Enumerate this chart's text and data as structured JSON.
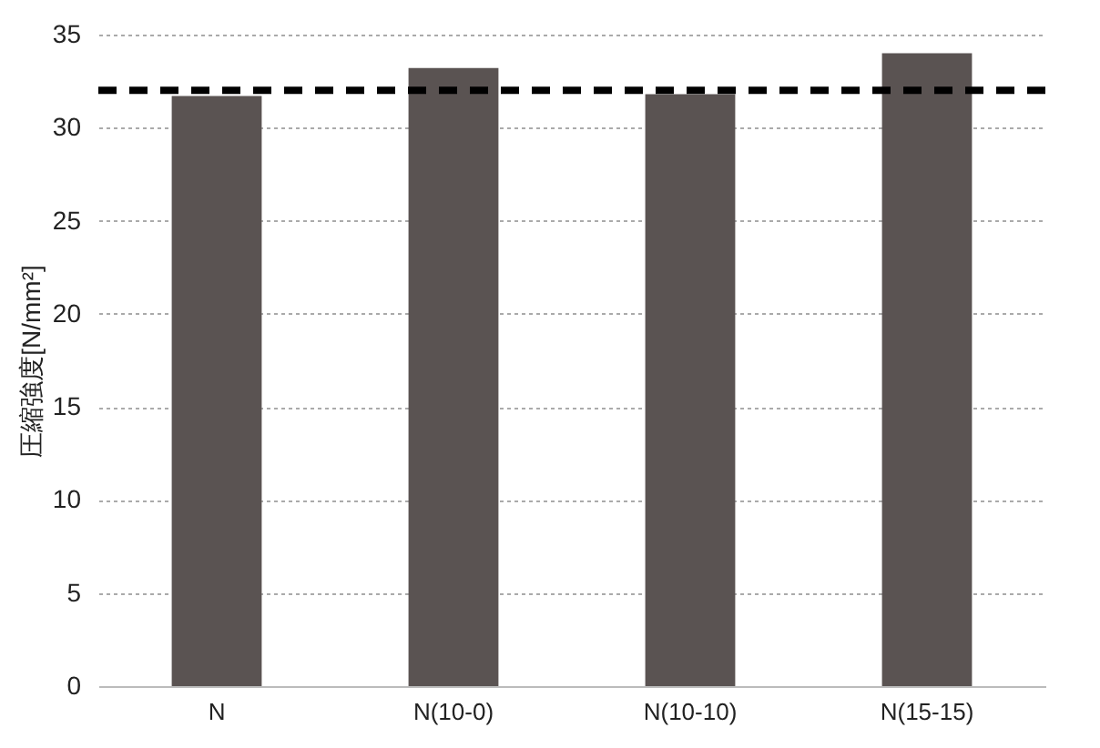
{
  "chart_data": {
    "type": "bar",
    "ylabel": "圧縮強度[N/mm²]",
    "categories": [
      "N",
      "N(10-0)",
      "N(10-10)",
      "N(15-15)"
    ],
    "values": [
      31.7,
      33.2,
      31.8,
      34.0
    ],
    "color": "#5a5352",
    "ylim": [
      0,
      35
    ],
    "yticks": [
      0,
      5,
      10,
      15,
      20,
      25,
      30,
      35
    ],
    "grid": "y",
    "ref_lines": [
      {
        "axis": "y",
        "value": 32,
        "color": "#000000",
        "line_style": "dashed"
      }
    ]
  }
}
